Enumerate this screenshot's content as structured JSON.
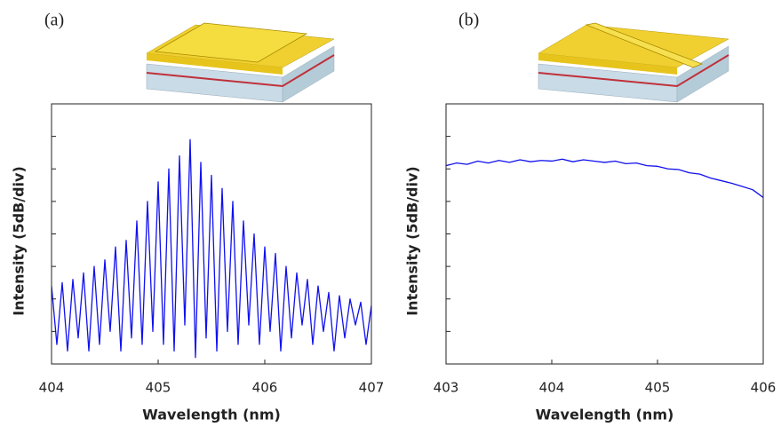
{
  "chart_data": [
    {
      "type": "line",
      "panel_label": "(a)",
      "x_label": "Wavelength (nm)",
      "y_label": "Intensity (5dB/div)",
      "xlim": [
        404,
        407
      ],
      "xticks": [
        404,
        405,
        406,
        407
      ],
      "ylim": [
        0,
        40
      ],
      "yticks": [
        5,
        10,
        15,
        20,
        25,
        30,
        35
      ],
      "x": [
        404.0,
        404.05,
        404.1,
        404.15,
        404.2,
        404.25,
        404.3,
        404.35,
        404.4,
        404.45,
        404.5,
        404.55,
        404.6,
        404.65,
        404.7,
        404.75,
        404.8,
        404.85,
        404.9,
        404.95,
        405.0,
        405.05,
        405.1,
        405.15,
        405.2,
        405.25,
        405.3,
        405.35,
        405.4,
        405.45,
        405.5,
        405.55,
        405.6,
        405.65,
        405.7,
        405.75,
        405.8,
        405.85,
        405.9,
        405.95,
        406.0,
        406.05,
        406.1,
        406.15,
        406.2,
        406.25,
        406.3,
        406.35,
        406.4,
        406.45,
        406.5,
        406.55,
        406.6,
        406.65,
        406.7,
        406.75,
        406.8,
        406.85,
        406.9,
        406.95,
        407.0
      ],
      "series": [
        {
          "color": "#1010ee",
          "values": [
            12,
            3,
            12.5,
            2,
            13,
            4,
            14,
            2,
            15,
            3,
            16,
            5,
            18,
            2,
            19,
            4,
            22,
            3,
            25,
            5,
            28,
            3,
            30,
            2,
            32,
            6,
            34.5,
            1,
            31,
            4,
            29,
            2,
            27,
            5,
            25,
            3,
            22,
            6,
            20,
            3,
            18,
            5,
            17,
            2,
            15,
            4,
            14,
            6,
            13,
            3,
            12,
            5,
            11,
            2,
            10.5,
            4,
            10,
            6,
            9.5,
            3,
            9
          ]
        }
      ]
    },
    {
      "type": "line",
      "panel_label": "(b)",
      "x_label": "Wavelength (nm)",
      "y_label": "Intensity (5dB/div)",
      "xlim": [
        403,
        406
      ],
      "xticks": [
        403,
        404,
        405,
        406
      ],
      "ylim": [
        0,
        40
      ],
      "yticks": [
        5,
        10,
        15,
        20,
        25,
        30,
        35
      ],
      "x": [
        403.0,
        403.1,
        403.2,
        403.3,
        403.4,
        403.5,
        403.6,
        403.7,
        403.8,
        403.9,
        404.0,
        404.1,
        404.2,
        404.3,
        404.4,
        404.5,
        404.6,
        404.7,
        404.8,
        404.9,
        405.0,
        405.1,
        405.2,
        405.3,
        405.4,
        405.5,
        405.6,
        405.7,
        405.8,
        405.9,
        406.0
      ],
      "series": [
        {
          "color": "#1010ee",
          "values": [
            30.5,
            30.9,
            30.7,
            31.2,
            30.9,
            31.3,
            31.0,
            31.4,
            31.1,
            31.3,
            31.2,
            31.5,
            31.1,
            31.4,
            31.2,
            31.0,
            31.2,
            30.8,
            30.9,
            30.5,
            30.4,
            30.0,
            29.9,
            29.4,
            29.2,
            28.6,
            28.2,
            27.8,
            27.3,
            26.8,
            25.6
          ]
        }
      ]
    }
  ]
}
